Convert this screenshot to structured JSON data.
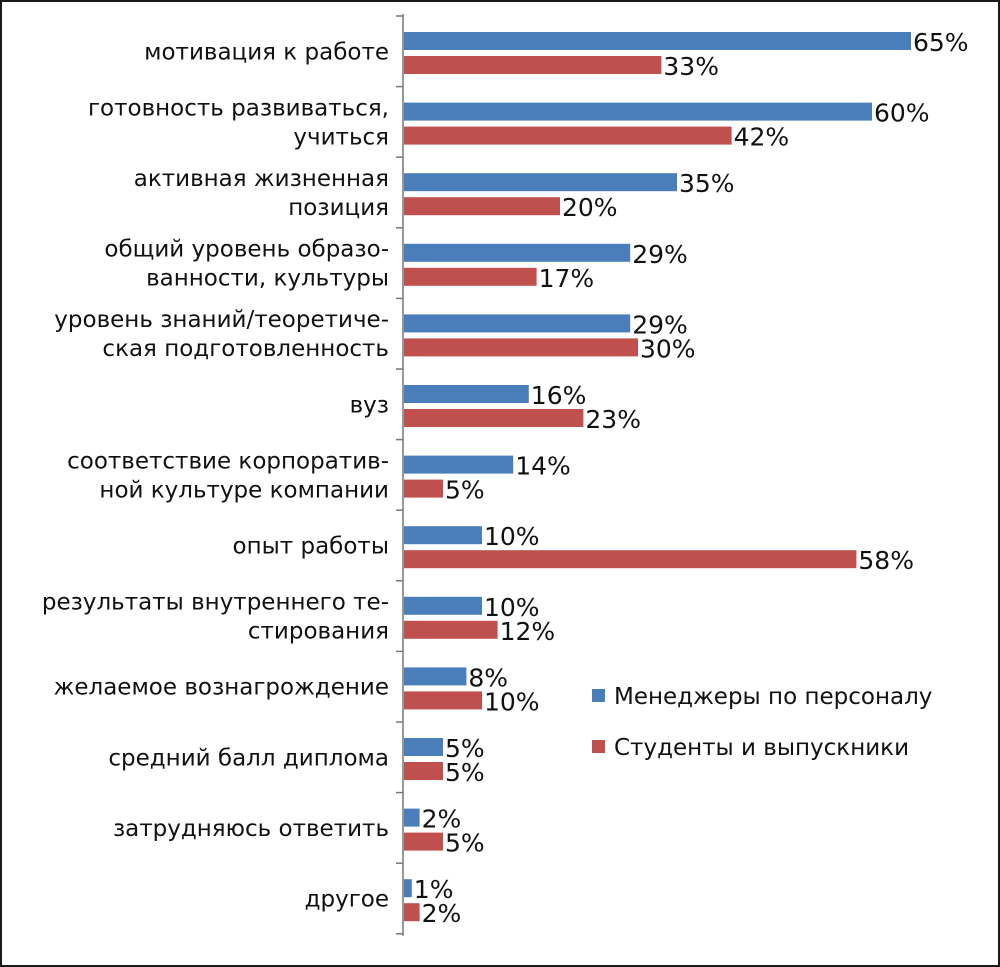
{
  "chart_data": {
    "type": "bar",
    "orientation": "horizontal",
    "title": "",
    "xlabel": "",
    "ylabel": "",
    "xlim": [
      0,
      65
    ],
    "grid": false,
    "legend_position": "right-middle",
    "categories": [
      [
        "мотивация к работе"
      ],
      [
        "готовность развиваться,",
        "учиться"
      ],
      [
        "активная жизненная",
        "позиция"
      ],
      [
        "общий уровень образо-",
        "ванности, культуры"
      ],
      [
        "уровень знаний/теоретиче-",
        "ская подготовленность"
      ],
      [
        "вуз"
      ],
      [
        "соответствие корпоратив-",
        "ной культуре компании"
      ],
      [
        "опыт работы"
      ],
      [
        "результаты внутреннего те-",
        "стирования"
      ],
      [
        "желаемое вознагрождение"
      ],
      [
        "средний балл диплома"
      ],
      [
        "затрудняюсь ответить"
      ],
      [
        "другое"
      ]
    ],
    "series": [
      {
        "name": "Менеджеры по персоналу",
        "color": "#4a7ebb",
        "values": [
          65,
          60,
          35,
          29,
          29,
          16,
          14,
          10,
          10,
          8,
          5,
          2,
          1
        ],
        "labels": [
          "65%",
          "60%",
          "35%",
          "29%",
          "29%",
          "16%",
          "14%",
          "10%",
          "10%",
          "8%",
          "5%",
          "2%",
          "1%"
        ]
      },
      {
        "name": "Студенты и выпускники",
        "color": "#c0504d",
        "values": [
          33,
          42,
          20,
          17,
          30,
          23,
          5,
          58,
          12,
          10,
          5,
          5,
          2
        ],
        "labels": [
          "33%",
          "42%",
          "20%",
          "17%",
          "30%",
          "23%",
          "5%",
          "58%",
          "12%",
          "10%",
          "5%",
          "5%",
          "2%"
        ]
      }
    ]
  }
}
